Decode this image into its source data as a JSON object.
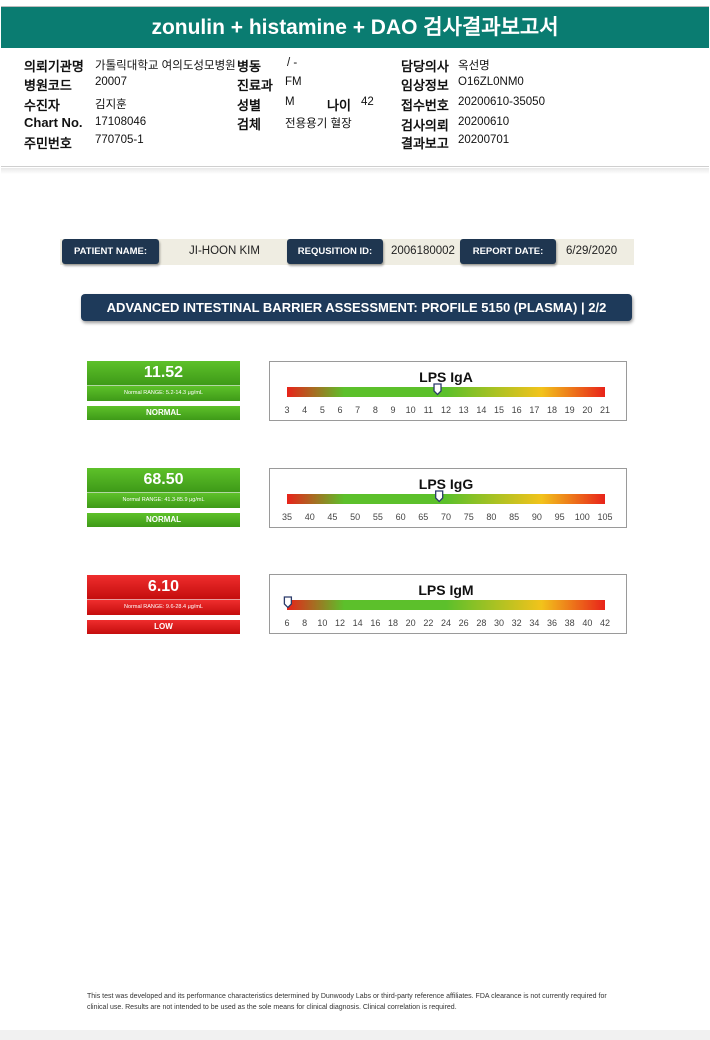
{
  "report_title": "zonulin + histamine + DAO 검사결과보고서",
  "header_fields": [
    {
      "label": "의뢰기관명",
      "value": "가톨릭대학교 여의도성모병원"
    },
    {
      "label": "병원코드",
      "value": "20007"
    },
    {
      "label": "수진자",
      "value": "김지훈"
    },
    {
      "label": "Chart No.",
      "value": "17108046"
    },
    {
      "label": "주민번호",
      "value": "770705-1"
    },
    {
      "label": "병동",
      "value": "/ -"
    },
    {
      "label": "진료과",
      "value": "FM"
    },
    {
      "label": "성별",
      "value": "M"
    },
    {
      "label": "나이",
      "value": "42"
    },
    {
      "label": "검체",
      "value": "전용용기 혈장"
    },
    {
      "label": "담당의사",
      "value": "옥선명"
    },
    {
      "label": "임상정보",
      "value": "O16ZL0NM0"
    },
    {
      "label": "접수번호",
      "value": "20200610-35050"
    },
    {
      "label": "검사의뢰",
      "value": "20200610"
    },
    {
      "label": "결과보고",
      "value": "20200701"
    }
  ],
  "id_strip": {
    "patient_name_label": "PATIENT NAME:",
    "patient_name": "JI-HOON KIM",
    "requisition_label": "REQUSITION ID:",
    "requisition_id": "2006180002",
    "report_date_label": "REPORT DATE:",
    "report_date": "6/29/2020"
  },
  "banner": "ADVANCED INTESTINAL BARRIER ASSESSMENT: PROFILE 5150 (PLASMA) | 2/2",
  "results": [
    {
      "value": "11.52",
      "range": "Normal RANGE: 5.2-14.3 μg/mL",
      "status": "NORMAL"
    },
    {
      "value": "68.50",
      "range": "Normal RANGE: 41.3-85.9 μg/mL",
      "status": "NORMAL"
    },
    {
      "value": "6.10",
      "range": "Normal RANGE: 9.6-28.4 μg/mL",
      "status": "LOW"
    }
  ],
  "chart_data": [
    {
      "type": "bar",
      "title": "LPS IgA",
      "ticks": [
        3,
        4,
        5,
        6,
        7,
        8,
        9,
        10,
        11,
        12,
        13,
        14,
        15,
        16,
        17,
        18,
        19,
        20,
        21
      ],
      "xlim": [
        3,
        21
      ],
      "marker": 11.52,
      "colors": [
        "#e8231a",
        "#5cc02b",
        "#f2c31b",
        "#e8231a"
      ]
    },
    {
      "type": "bar",
      "title": "LPS IgG",
      "ticks": [
        35,
        40,
        45,
        50,
        55,
        60,
        65,
        70,
        75,
        80,
        85,
        90,
        95,
        100,
        105
      ],
      "xlim": [
        35,
        105
      ],
      "marker": 68.5,
      "colors": [
        "#e8231a",
        "#5cc02b",
        "#f2c31b",
        "#e8231a"
      ]
    },
    {
      "type": "bar",
      "title": "LPS IgM",
      "ticks": [
        6,
        8,
        10,
        12,
        14,
        16,
        18,
        20,
        22,
        24,
        26,
        28,
        30,
        32,
        34,
        36,
        38,
        40,
        42
      ],
      "xlim": [
        6,
        42
      ],
      "marker": 6.1,
      "colors": [
        "#e8231a",
        "#5cc02b",
        "#f2c31b",
        "#e8231a"
      ]
    }
  ],
  "footer": "This test was developed and its performance characteristics determined by Dunwoody Labs or third-party reference affiliates. FDA clearance is not currently required for clinical use. Results are not intended to be used as the sole means for clinical diagnosis. Clinical correlation is required."
}
